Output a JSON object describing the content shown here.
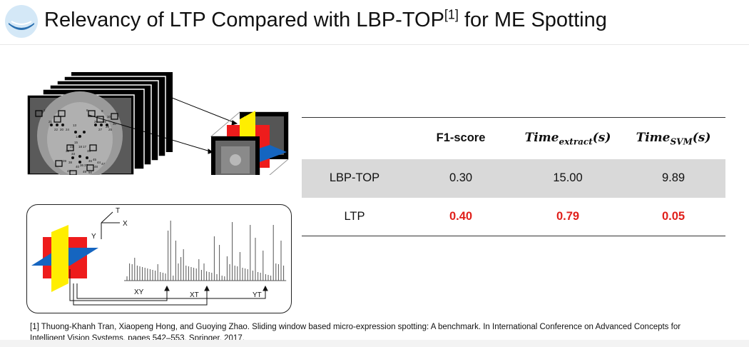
{
  "title": {
    "main": "Relevancy of LTP Compared with LBP-TOP",
    "ref": "[1]",
    "suffix": " for ME Spotting"
  },
  "table": {
    "headers": {
      "method": "",
      "f1": "F1-score",
      "time_extract_main": "Time",
      "time_extract_sub": "extract",
      "time_svm_main": "Time",
      "time_svm_sub": "SVM",
      "unit": "(s)"
    },
    "rows": [
      {
        "method": "LBP-TOP",
        "f1": "0.30",
        "time_extract": "15.00",
        "time_svm": "9.89"
      },
      {
        "method": "LTP",
        "f1": "0.40",
        "time_extract": "0.79",
        "time_svm": "0.05"
      }
    ]
  },
  "plot": {
    "axes": {
      "t": "T",
      "x": "X",
      "y": "Y"
    },
    "planes": {
      "xy": "XY",
      "xt": "XT",
      "yt": "YT"
    },
    "colors": {
      "red": "#ee1c1c",
      "yellow": "#ffee00",
      "blue": "#1565c0"
    }
  },
  "face_landmarks": [
    "2",
    "8",
    "10",
    "9",
    "21",
    "22",
    "26",
    "20",
    "27",
    "24",
    "13",
    "29",
    "28",
    "25",
    "30",
    "14",
    "15",
    "18",
    "17",
    "23",
    "33",
    "32",
    "35",
    "39",
    "38",
    "43",
    "40",
    "36",
    "37",
    "46",
    "45",
    "48",
    "44",
    "47",
    "49",
    "50"
  ],
  "footnote": "[1] Thuong-Khanh Tran, Xiaopeng Hong, and Guoying Zhao. Sliding window based micro-expression spotting: A benchmark. In International Conference on Advanced Concepts for Intelligent Vision Systems, pages 542–553. Springer, 2017."
}
